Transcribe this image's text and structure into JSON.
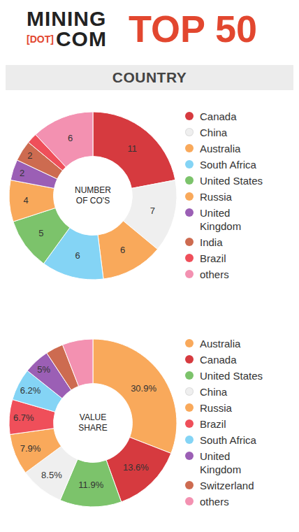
{
  "header": {
    "logo_top": "MINING",
    "logo_bracket": "[DOT]",
    "logo_bottom": "COM",
    "title": "TOP 50",
    "section": "COUNTRY"
  },
  "chart_data": [
    {
      "type": "pie",
      "title": "NUMBER OF CO'S",
      "categories": [
        "Canada",
        "China",
        "Australia",
        "South Africa",
        "United States",
        "Russia",
        "United Kingdom",
        "India",
        "Brazil",
        "others"
      ],
      "values": [
        11,
        7,
        6,
        6,
        5,
        4,
        2,
        2,
        1,
        6
      ],
      "value_labels": [
        "11",
        "7",
        "6",
        "6",
        "5",
        "4",
        "2",
        "2",
        null,
        "6"
      ],
      "colors": [
        "#d63a3f",
        "#efefef",
        "#f9a95b",
        "#84d4f5",
        "#7cc36b",
        "#f9a95b",
        "#9b5fb5",
        "#cd6b50",
        "#ef4f5a",
        "#f391b1"
      ],
      "data_labels": true,
      "legend": "right"
    },
    {
      "type": "pie",
      "title": "VALUE SHARE",
      "categories": [
        "Australia",
        "Canada",
        "United States",
        "China",
        "Russia",
        "Brazil",
        "South Africa",
        "United Kingdom",
        "Switzerland",
        "others"
      ],
      "values": [
        30.9,
        13.6,
        11.9,
        8.5,
        7.9,
        6.7,
        6.2,
        5,
        3.4,
        5.9
      ],
      "value_labels": [
        "30.9%",
        "13.6%",
        "11.9%",
        "8.5%",
        "7.9%",
        "6.7%",
        "6.2%",
        "5%",
        null,
        null
      ],
      "colors": [
        "#f9a95b",
        "#d63a3f",
        "#7cc36b",
        "#efefef",
        "#f9a95b",
        "#ef4f5a",
        "#84d4f5",
        "#9b5fb5",
        "#cd6b50",
        "#f391b1"
      ],
      "data_labels": true,
      "legend": "right"
    }
  ]
}
